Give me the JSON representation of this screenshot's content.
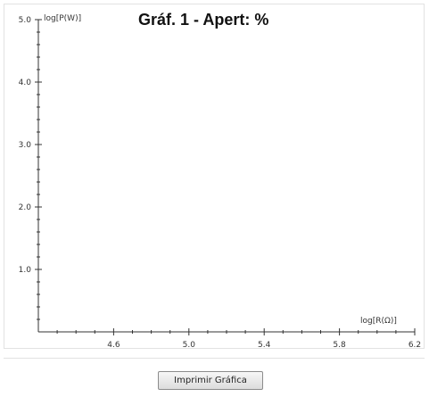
{
  "chart_data": {
    "type": "line",
    "title": "Gráf. 1 - Apert:  %",
    "xlabel": "log[R(Ω)]",
    "ylabel": "log[P(W)]",
    "xlim": [
      4.2,
      6.2
    ],
    "ylim": [
      0.0,
      5.0
    ],
    "x_ticks": [
      "4.6",
      "5.0",
      "5.4",
      "5.8",
      "6.2"
    ],
    "y_ticks": [
      "1.0",
      "2.0",
      "3.0",
      "4.0",
      "5.0"
    ],
    "series": []
  },
  "footer": {
    "print_button_label": "Imprimir Gráfica"
  }
}
